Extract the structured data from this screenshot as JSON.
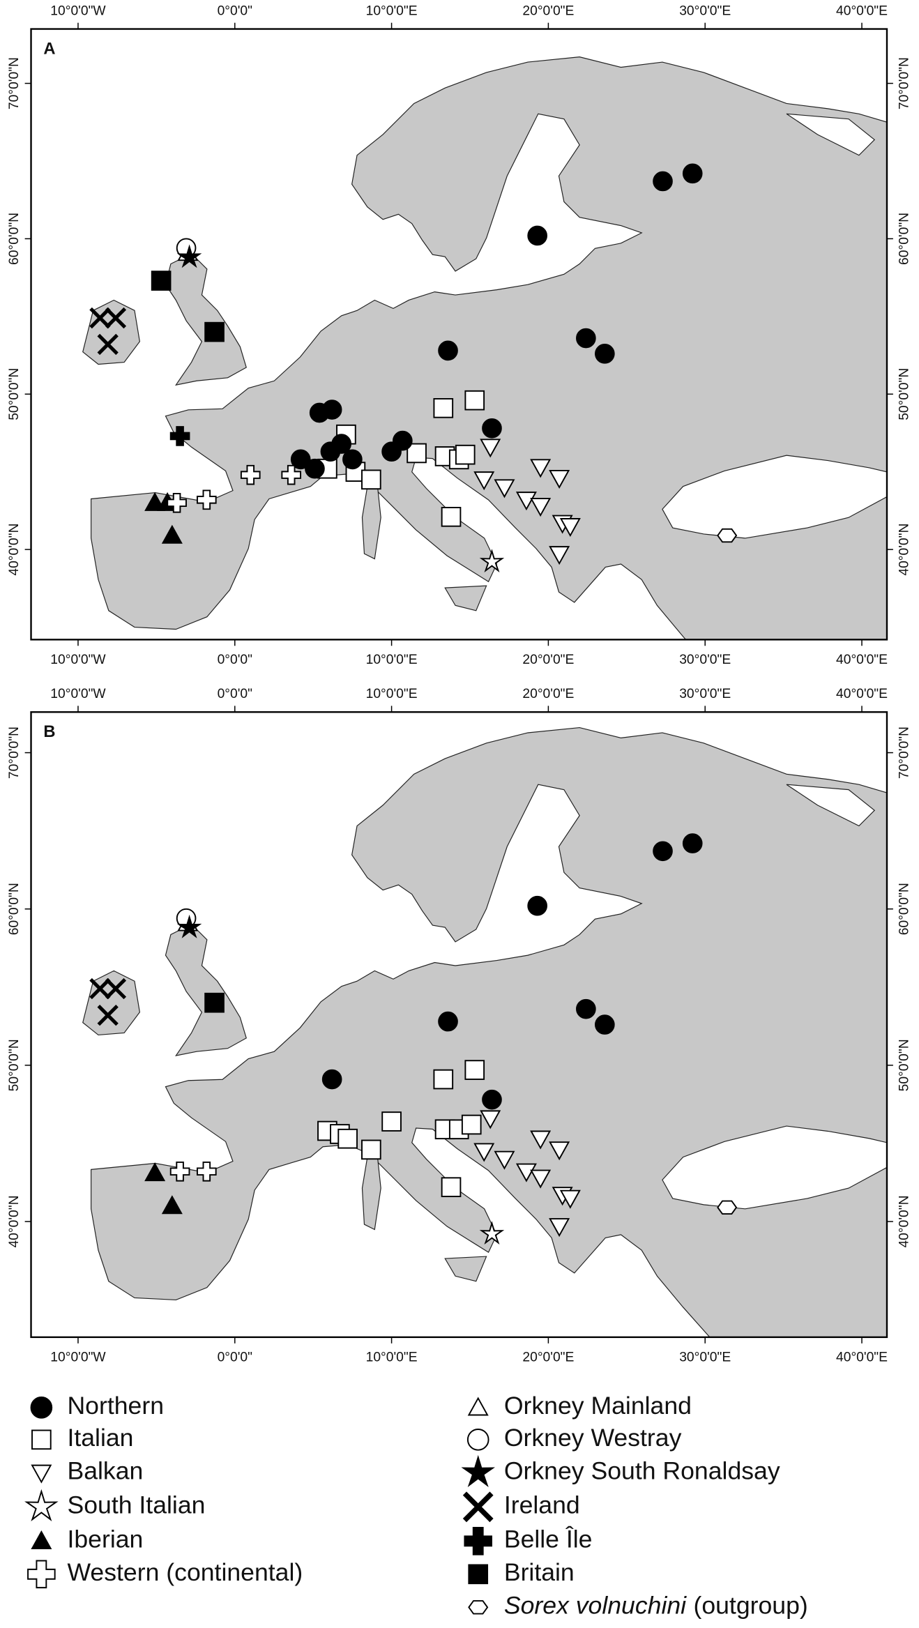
{
  "chart_data": [
    {
      "type": "map",
      "label": "A",
      "xlim": [
        -13,
        41.6
      ],
      "ylim": [
        34.2,
        73.5
      ],
      "xticks": [
        {
          "value": -10,
          "label": "10°0'0\"W"
        },
        {
          "value": 0,
          "label": "0°0'0\""
        },
        {
          "value": 10,
          "label": "10°0'0\"E"
        },
        {
          "value": 20,
          "label": "20°0'0\"E"
        },
        {
          "value": 30,
          "label": "30°0'0\"E"
        },
        {
          "value": 40,
          "label": "40°0'0\"E"
        }
      ],
      "yticks": [
        {
          "value": 40,
          "label": "40°0'0\"N"
        },
        {
          "value": 50,
          "label": "50°0'0\"N"
        },
        {
          "value": 60,
          "label": "60°0'0\"N"
        },
        {
          "value": 70,
          "label": "70°0'0\"N"
        }
      ],
      "series": [
        {
          "name": "Italian",
          "marker": "square-open",
          "x": [
            13.3,
            15.3,
            7.1,
            5.9,
            7.7,
            8.7,
            11.6,
            13.4,
            14.3,
            14.7,
            13.8
          ],
          "y": [
            49.1,
            49.6,
            47.4,
            45.2,
            45.0,
            44.5,
            46.2,
            46.0,
            45.8,
            46.1,
            42.1
          ]
        },
        {
          "name": "Northern",
          "marker": "circle-filled",
          "x": [
            27.3,
            29.2,
            19.3,
            22.4,
            23.6,
            13.6,
            16.4,
            5.4,
            6.2,
            4.2,
            5.1,
            6.1,
            6.8,
            7.5,
            10.0,
            10.7
          ],
          "y": [
            63.7,
            64.2,
            60.2,
            53.6,
            52.6,
            52.8,
            47.8,
            48.8,
            49.0,
            45.8,
            45.2,
            46.3,
            46.8,
            45.8,
            46.3,
            47.0
          ]
        },
        {
          "name": "Balkan",
          "marker": "tri-down-open",
          "x": [
            16.3,
            15.9,
            17.2,
            18.6,
            19.5,
            20.7,
            19.5,
            20.9,
            21.4,
            20.7
          ],
          "y": [
            46.6,
            44.5,
            44.0,
            43.2,
            45.3,
            44.6,
            42.8,
            41.7,
            41.5,
            39.7
          ]
        },
        {
          "name": "South Italian",
          "marker": "star-open",
          "x": [
            16.4
          ],
          "y": [
            39.2
          ]
        },
        {
          "name": "Iberian",
          "marker": "tri-up-filled",
          "x": [
            -5.1,
            -4.3,
            -4.0
          ],
          "y": [
            43.0,
            43.0,
            40.9
          ]
        },
        {
          "name": "Western (continental)",
          "marker": "plus-open",
          "x": [
            -3.7,
            -1.8,
            1.0,
            3.6
          ],
          "y": [
            43.0,
            43.2,
            44.8,
            44.8
          ]
        },
        {
          "name": "Orkney Mainland",
          "marker": "tri-up-open",
          "x": [
            -3.0
          ],
          "y": [
            59.1
          ]
        },
        {
          "name": "Orkney Westray",
          "marker": "circle-open",
          "x": [
            -3.1
          ],
          "y": [
            59.4
          ]
        },
        {
          "name": "Orkney South Ronaldsay",
          "marker": "star-filled",
          "x": [
            -2.9
          ],
          "y": [
            58.8
          ]
        },
        {
          "name": "Ireland",
          "marker": "x",
          "x": [
            -8.6,
            -7.6,
            -8.1
          ],
          "y": [
            54.9,
            54.9,
            53.2
          ]
        },
        {
          "name": "Belle Île",
          "marker": "plus-filled",
          "x": [
            -3.5
          ],
          "y": [
            47.3
          ]
        },
        {
          "name": "Britain",
          "marker": "square-filled",
          "x": [
            -4.7,
            -1.3
          ],
          "y": [
            57.3,
            54.0
          ]
        },
        {
          "name": "Sorex volnuchini",
          "note": "(outgroup)",
          "marker": "hexagon-open",
          "x": [
            31.4
          ],
          "y": [
            40.9
          ]
        }
      ]
    },
    {
      "type": "map",
      "label": "B",
      "xlim": [
        -13,
        41.6
      ],
      "ylim": [
        32.6,
        72.6
      ],
      "xticks": [
        {
          "value": -10,
          "label": "10°0'0\"W"
        },
        {
          "value": 0,
          "label": "0°0'0\""
        },
        {
          "value": 10,
          "label": "10°0'0\"E"
        },
        {
          "value": 20,
          "label": "20°0'0\"E"
        },
        {
          "value": 30,
          "label": "30°0'0\"E"
        },
        {
          "value": 40,
          "label": "40°0'0\"E"
        }
      ],
      "yticks": [
        {
          "value": 40,
          "label": "40°0'0\"N"
        },
        {
          "value": 50,
          "label": "50°0'0\"N"
        },
        {
          "value": 60,
          "label": "60°0'0\"N"
        },
        {
          "value": 70,
          "label": "70°0'0\"N"
        }
      ],
      "series": [
        {
          "marker": "square-open",
          "x": [
            5.9,
            6.7,
            7.2,
            8.7,
            10.0,
            13.3,
            15.3,
            13.4,
            14.3,
            15.1,
            13.8
          ],
          "y": [
            45.8,
            45.6,
            45.3,
            44.6,
            46.4,
            49.1,
            49.7,
            45.9,
            45.9,
            46.2,
            42.2
          ]
        },
        {
          "marker": "circle-filled",
          "x": [
            27.3,
            29.2,
            19.3,
            22.4,
            23.6,
            13.6,
            16.4,
            6.2
          ],
          "y": [
            63.7,
            64.2,
            60.2,
            53.6,
            52.6,
            52.8,
            47.8,
            49.1
          ]
        },
        {
          "marker": "tri-down-open",
          "x": [
            16.3,
            15.9,
            17.2,
            18.6,
            19.5,
            20.7,
            19.5,
            20.9,
            21.4,
            20.7
          ],
          "y": [
            46.6,
            44.5,
            44.0,
            43.2,
            45.3,
            44.6,
            42.8,
            41.7,
            41.5,
            39.7
          ]
        },
        {
          "marker": "star-open",
          "x": [
            16.4
          ],
          "y": [
            39.2
          ]
        },
        {
          "marker": "tri-up-filled",
          "x": [
            -5.1,
            -4.0
          ],
          "y": [
            43.1,
            41.0
          ]
        },
        {
          "marker": "plus-open",
          "x": [
            -3.5,
            -1.8
          ],
          "y": [
            43.2,
            43.2
          ]
        },
        {
          "marker": "tri-up-open",
          "x": [
            -3.0
          ],
          "y": [
            59.1
          ]
        },
        {
          "marker": "circle-open",
          "x": [
            -3.1
          ],
          "y": [
            59.4
          ]
        },
        {
          "marker": "star-filled",
          "x": [
            -2.9
          ],
          "y": [
            58.8
          ]
        },
        {
          "marker": "x",
          "x": [
            -8.6,
            -7.6,
            -8.1
          ],
          "y": [
            54.9,
            54.9,
            53.2
          ]
        },
        {
          "marker": "plus-filled",
          "x": [],
          "y": []
        },
        {
          "marker": "square-filled",
          "x": [
            -1.3
          ],
          "y": [
            54.0
          ]
        },
        {
          "marker": "hexagon-open",
          "x": [
            31.4
          ],
          "y": [
            40.9
          ]
        }
      ]
    }
  ]
}
